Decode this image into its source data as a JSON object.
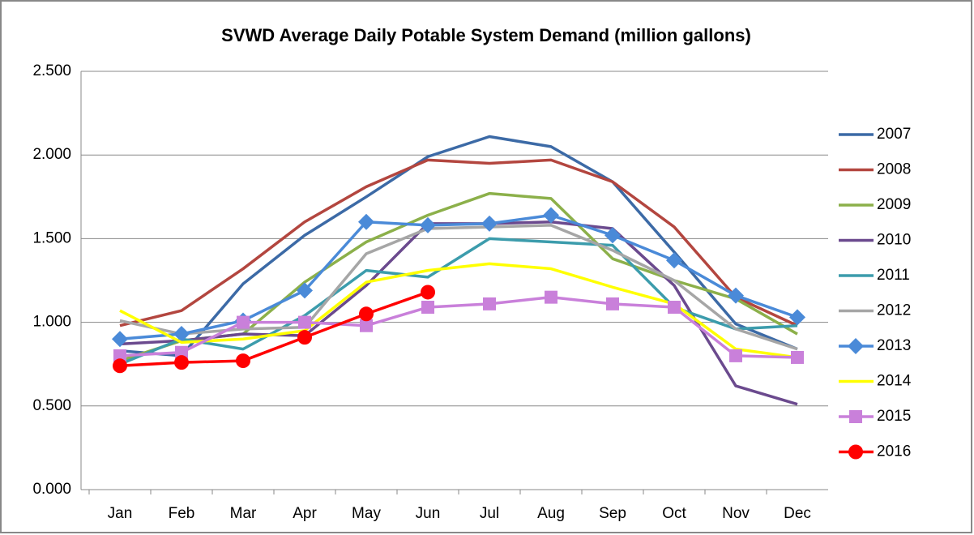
{
  "chart_data": {
    "type": "line",
    "title": "SVWD Average Daily Potable System Demand (million gallons)",
    "categories": [
      "Jan",
      "Feb",
      "Mar",
      "Apr",
      "May",
      "Jun",
      "Jul",
      "Aug",
      "Sep",
      "Oct",
      "Nov",
      "Dec"
    ],
    "ylim": [
      0,
      2.5
    ],
    "yticks": [
      {
        "value": 0,
        "label": "0.000"
      },
      {
        "value": 0.5,
        "label": "0.500"
      },
      {
        "value": 1,
        "label": "1.000"
      },
      {
        "value": 1.5,
        "label": "1.500"
      },
      {
        "value": 2,
        "label": "2.000"
      },
      {
        "value": 2.5,
        "label": "2.500"
      }
    ],
    "grid": true,
    "legend": "right",
    "series": [
      {
        "name": "2007",
        "color": "#3c6aa6",
        "values": [
          0.83,
          0.8,
          1.23,
          1.52,
          1.75,
          1.99,
          2.11,
          2.05,
          1.84,
          1.42,
          0.99,
          0.84
        ]
      },
      {
        "name": "2008",
        "color": "#b3463f",
        "values": [
          0.98,
          1.07,
          1.32,
          1.6,
          1.81,
          1.97,
          1.95,
          1.97,
          1.84,
          1.57,
          1.15,
          0.98
        ]
      },
      {
        "name": "2009",
        "color": "#8cb04a",
        "values": [
          0.77,
          0.89,
          0.93,
          1.24,
          1.48,
          1.64,
          1.77,
          1.74,
          1.38,
          1.25,
          1.14,
          0.93
        ]
      },
      {
        "name": "2010",
        "color": "#6b4a8e",
        "values": [
          0.87,
          0.89,
          0.93,
          0.92,
          1.22,
          1.59,
          1.59,
          1.6,
          1.56,
          1.22,
          0.62,
          0.51
        ]
      },
      {
        "name": "2011",
        "color": "#3c9cac",
        "values": [
          0.75,
          0.9,
          0.84,
          1.04,
          1.31,
          1.27,
          1.5,
          1.48,
          1.46,
          1.09,
          0.96,
          0.98
        ]
      },
      {
        "name": "2012",
        "color": "#a6a6a6",
        "values": [
          1.01,
          0.93,
          0.96,
          0.97,
          1.41,
          1.56,
          1.57,
          1.58,
          1.43,
          1.25,
          0.96,
          0.84
        ]
      },
      {
        "name": "2013",
        "color": "#4a8ad8",
        "marker": "diamond",
        "values": [
          0.9,
          0.93,
          1.01,
          1.19,
          1.6,
          1.58,
          1.59,
          1.64,
          1.52,
          1.37,
          1.16,
          1.03
        ]
      },
      {
        "name": "2014",
        "color": "#ffff00",
        "values": [
          1.07,
          0.88,
          0.9,
          0.95,
          1.24,
          1.31,
          1.35,
          1.32,
          1.21,
          1.11,
          0.84,
          0.79
        ]
      },
      {
        "name": "2015",
        "color": "#c980da",
        "marker": "square",
        "values": [
          0.8,
          0.82,
          1.0,
          1.0,
          0.98,
          1.09,
          1.11,
          1.15,
          1.11,
          1.09,
          0.8,
          0.79
        ]
      },
      {
        "name": "2016",
        "color": "#ff0000",
        "marker": "circle",
        "values": [
          0.74,
          0.76,
          0.77,
          0.91,
          1.05,
          1.18,
          null,
          null,
          null,
          null,
          null,
          null
        ]
      }
    ]
  }
}
